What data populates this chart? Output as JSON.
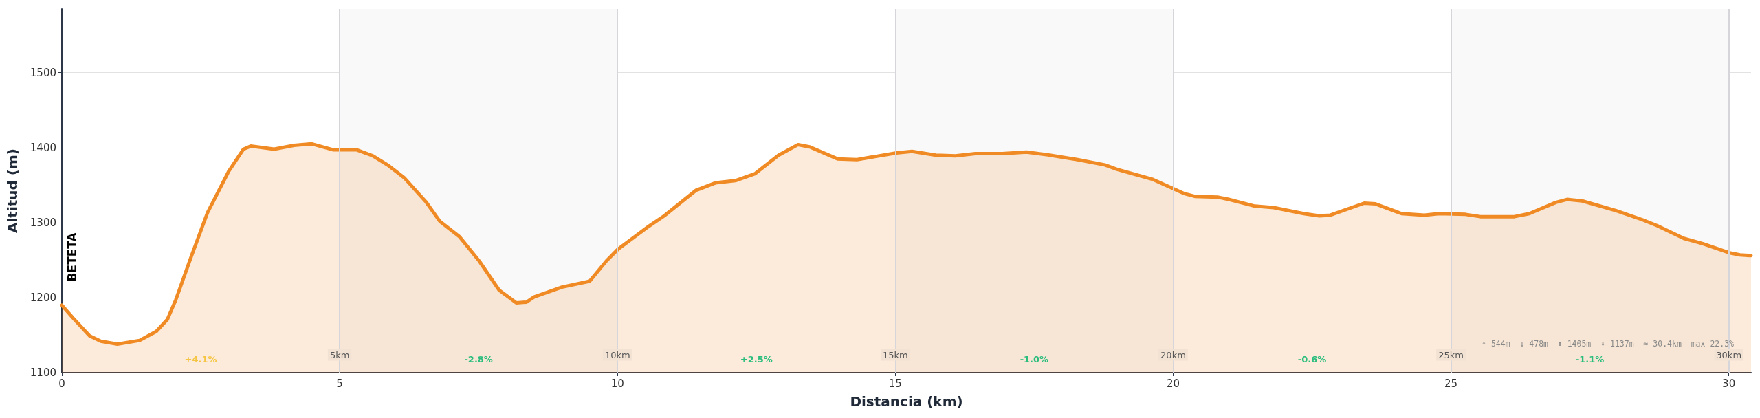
{
  "chart_data": {
    "type": "area",
    "xlabel": "Distancia (km)",
    "ylabel": "Altitud (m)",
    "xlim": [
      0,
      30.4
    ],
    "xticks": [
      0,
      5,
      10,
      15,
      20,
      25,
      30
    ],
    "ylim": [
      1100,
      1585
    ],
    "yticks": [
      1100,
      1200,
      1300,
      1400,
      1500
    ],
    "grid": "y",
    "marker": "none",
    "line_style": "solid",
    "series": [
      {
        "color": "#f08a24",
        "x": [
          0,
          0.2,
          0.5,
          0.7,
          1.0,
          1.4,
          1.7,
          1.9,
          2.05,
          2.33,
          2.62,
          3.0,
          3.27,
          3.4,
          3.82,
          4.18,
          4.5,
          4.89,
          5.31,
          5.6,
          5.88,
          6.16,
          6.55,
          6.8,
          7.16,
          7.51,
          7.87,
          8.18,
          8.36,
          8.5,
          9.0,
          9.5,
          9.8,
          10.0,
          10.56,
          10.84,
          11.41,
          11.76,
          12.12,
          12.47,
          12.9,
          13.25,
          13.46,
          13.96,
          14.31,
          15.02,
          15.3,
          15.73,
          16.08,
          16.44,
          16.93,
          17.36,
          17.78,
          18.28,
          18.77,
          18.99,
          19.62,
          20.19,
          20.39,
          20.8,
          21.0,
          21.47,
          21.81,
          22.35,
          22.63,
          22.83,
          23.44,
          23.64,
          24.11,
          24.52,
          24.79,
          25.26,
          25.53,
          26.14,
          26.41,
          26.89,
          27.09,
          27.36,
          27.97,
          28.44,
          28.71,
          29.19,
          29.53,
          30.0,
          30.2,
          30.4
        ],
        "values": [
          1190,
          1173,
          1149,
          1142,
          1138,
          1143,
          1155,
          1171,
          1197,
          1255,
          1313,
          1368,
          1398,
          1402,
          1398,
          1403,
          1405,
          1397,
          1397,
          1389,
          1376,
          1360,
          1328,
          1302,
          1281,
          1249,
          1210,
          1193,
          1194,
          1201,
          1214,
          1222,
          1249,
          1264,
          1295,
          1309,
          1343,
          1353,
          1356,
          1365,
          1390,
          1404,
          1401,
          1385,
          1384,
          1393,
          1395,
          1390,
          1389,
          1392,
          1392,
          1394,
          1390,
          1384,
          1377,
          1371,
          1358,
          1339,
          1335,
          1334,
          1331,
          1322,
          1320,
          1312,
          1309,
          1310,
          1326,
          1325,
          1312,
          1310,
          1312,
          1311,
          1308,
          1308,
          1312,
          1327,
          1331,
          1329,
          1316,
          1304,
          1296,
          1279,
          1272,
          1260,
          1257,
          1256
        ]
      }
    ],
    "bands": [
      {
        "axis": "x",
        "from": 5,
        "to": 10,
        "color": "#f9f9f9"
      },
      {
        "axis": "x",
        "from": 15,
        "to": 20,
        "color": "#f9f9f9"
      },
      {
        "axis": "x",
        "from": 25,
        "to": 30,
        "color": "#f9f9f9"
      }
    ],
    "ref_lines": [
      {
        "axis": "x",
        "value": 5,
        "label": "5km",
        "color": "#d6d6da"
      },
      {
        "axis": "x",
        "value": 10,
        "label": "10km",
        "color": "#d6d6da"
      },
      {
        "axis": "x",
        "value": 15,
        "label": "15km",
        "color": "#d6d6da"
      },
      {
        "axis": "x",
        "value": 20,
        "label": "20km",
        "color": "#d6d6da"
      },
      {
        "axis": "x",
        "value": 25,
        "label": "25km",
        "color": "#d6d6da"
      },
      {
        "axis": "x",
        "value": 30,
        "label": "30km",
        "color": "#d6d6da"
      }
    ],
    "annotations": [
      "BETETA",
      "+4.1%",
      "-2.8%",
      "+2.5%",
      "-1.0%",
      "-0.6%",
      "-1.1%",
      "↑ 544m  ↓ 478m  ⬆ 1405m  ⬇ 1137m  ≈ 30.4km  max 22.3%"
    ]
  }
}
